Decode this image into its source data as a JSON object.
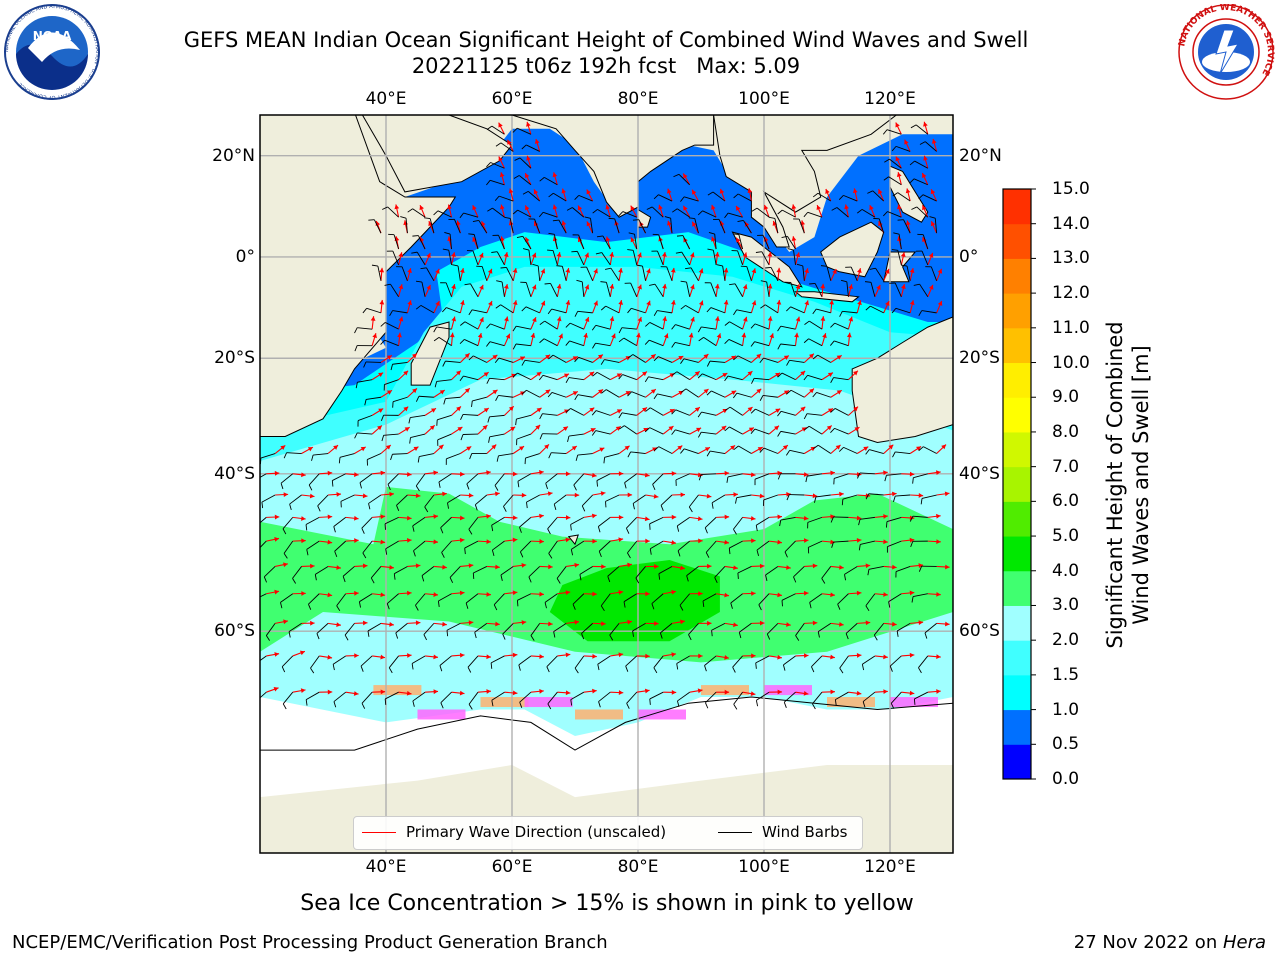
{
  "title_line1": "GEFS MEAN Indian Ocean Significant Height of Combined Wind Waves and Swell",
  "title_line2": "20221125 t06z 192h fcst   Max: 5.09",
  "logos": {
    "noaa_text": "NOAA",
    "noaa_ring": "NATIONAL OCEANIC AND ATMOSPHERIC ADMINISTRATION · U.S. DEPARTMENT OF COMMERCE",
    "nws_ring": "NATIONAL WEATHER SERVICE"
  },
  "map": {
    "lon_ticks": [
      "40°E",
      "60°E",
      "80°E",
      "100°E",
      "120°E"
    ],
    "lat_ticks_left": [
      "20°N",
      "0°",
      "20°S",
      "40°S",
      "60°S"
    ],
    "lat_ticks_right": [
      "20°N",
      "0°",
      "20°S",
      "40°S",
      "60°S"
    ],
    "lon_range": [
      20,
      130
    ],
    "lat_range": [
      -76,
      27.5
    ],
    "colors": {
      "land": "#efeedc",
      "ice_shelf": "#ffffff",
      "coast": "#000000",
      "grid": "#b0b0b0",
      "wave_arrow": "#ff0000",
      "wind_barb": "#000000"
    }
  },
  "colorbar": {
    "title": "Significant Height of Combined Wind Waves and Swell [m]",
    "title_line1": "Significant Height of Combined",
    "title_line2": "Wind Waves and Swell [m]",
    "labels": [
      "0.0",
      "0.5",
      "1.0",
      "1.5",
      "2.0",
      "3.0",
      "4.0",
      "5.0",
      "6.0",
      "7.0",
      "8.0",
      "9.0",
      "10.0",
      "11.0",
      "12.0",
      "13.0",
      "14.0",
      "15.0"
    ],
    "colors": [
      "#0000ff",
      "#0070ff",
      "#00ffff",
      "#40ffff",
      "#a0ffff",
      "#40ff70",
      "#00e800",
      "#50ec00",
      "#a8f400",
      "#d0f800",
      "#ffff00",
      "#ffee00",
      "#ffc000",
      "#ffa000",
      "#ff8000",
      "#ff5000",
      "#ff3000"
    ]
  },
  "legend": {
    "wave_label": "Primary Wave Direction (unscaled)",
    "wind_label": "Wind Barbs"
  },
  "caption": "Sea Ice Concentration > 15% is shown in pink to yellow",
  "credit": "NCEP/EMC/Verification Post Processing Product Generation Branch",
  "date_text": "27 Nov 2022 on ",
  "date_host": "Hera"
}
